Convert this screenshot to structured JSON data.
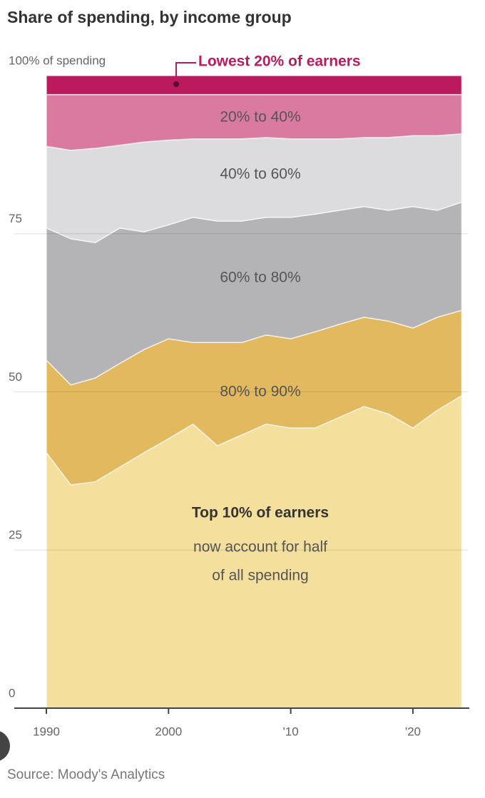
{
  "chart_data": {
    "type": "stacked-area",
    "title": "Share of spending, by income group",
    "source": "Source: Moody's Analytics",
    "annotations": [
      "now account for half",
      "of all spending"
    ],
    "x": [
      1990,
      1992,
      1994,
      1996,
      1998,
      2000,
      2002,
      2004,
      2006,
      2008,
      2010,
      2012,
      2014,
      2016,
      2018,
      2020,
      2022,
      2024
    ],
    "xlim": [
      1990,
      2024.5
    ],
    "xticks": [
      1990,
      2000,
      {
        "value": 2010,
        "label": "'10"
      },
      {
        "value": 2020,
        "label": "'20"
      }
    ],
    "ylim": [
      0,
      100
    ],
    "yticks": [
      0,
      25,
      50,
      75,
      {
        "value": 100,
        "label": "100% of spending"
      }
    ],
    "grid": true,
    "series": [
      {
        "name": "Top 10% of earners",
        "color": "#f4df9c",
        "values": [
          40.4,
          35.3,
          35.8,
          38.1,
          40.4,
          42.6,
          44.9,
          41.5,
          43.2,
          44.9,
          44.3,
          44.3,
          46,
          47.7,
          46.5,
          44.3,
          47.1,
          49.4
        ]
      },
      {
        "name": "80% to 90%",
        "color": "#e2b95e",
        "values": [
          14.6,
          15.8,
          16.4,
          16.4,
          16.3,
          15.8,
          12.9,
          16.3,
          14.6,
          14.1,
          14.1,
          15.2,
          14.7,
          14.1,
          14.7,
          15.8,
          14.7,
          13.5
        ]
      },
      {
        "name": "60% to 80%",
        "color": "#b4b3b5",
        "values": [
          20.9,
          23.1,
          21.4,
          21.4,
          18.6,
          18,
          19.8,
          19.2,
          19.2,
          18.6,
          19.2,
          18.6,
          18,
          17.5,
          17.5,
          19.2,
          16.9,
          17.1
        ]
      },
      {
        "name": "40% to 60%",
        "color": "#dcdcde",
        "values": [
          12.9,
          14,
          14.9,
          13.1,
          14.2,
          13.4,
          12.4,
          13,
          13,
          12.6,
          12.4,
          11.9,
          11.3,
          10.9,
          11.5,
          11.2,
          11.8,
          10.8
        ]
      },
      {
        "name": "20% to 40%",
        "color": "#da7aa0",
        "values": [
          8.2,
          8.8,
          8.5,
          8,
          7.5,
          7.2,
          7,
          7,
          7,
          6.8,
          7,
          7,
          7,
          6.8,
          6.8,
          6.5,
          6.5,
          6.2
        ]
      },
      {
        "name": "Lowest 20% of earners",
        "color": "#bb1a5e",
        "values": [
          3,
          3,
          3,
          3,
          3,
          3,
          3,
          3,
          3,
          3,
          3,
          3,
          3,
          3,
          3,
          3,
          3,
          3
        ]
      }
    ]
  }
}
